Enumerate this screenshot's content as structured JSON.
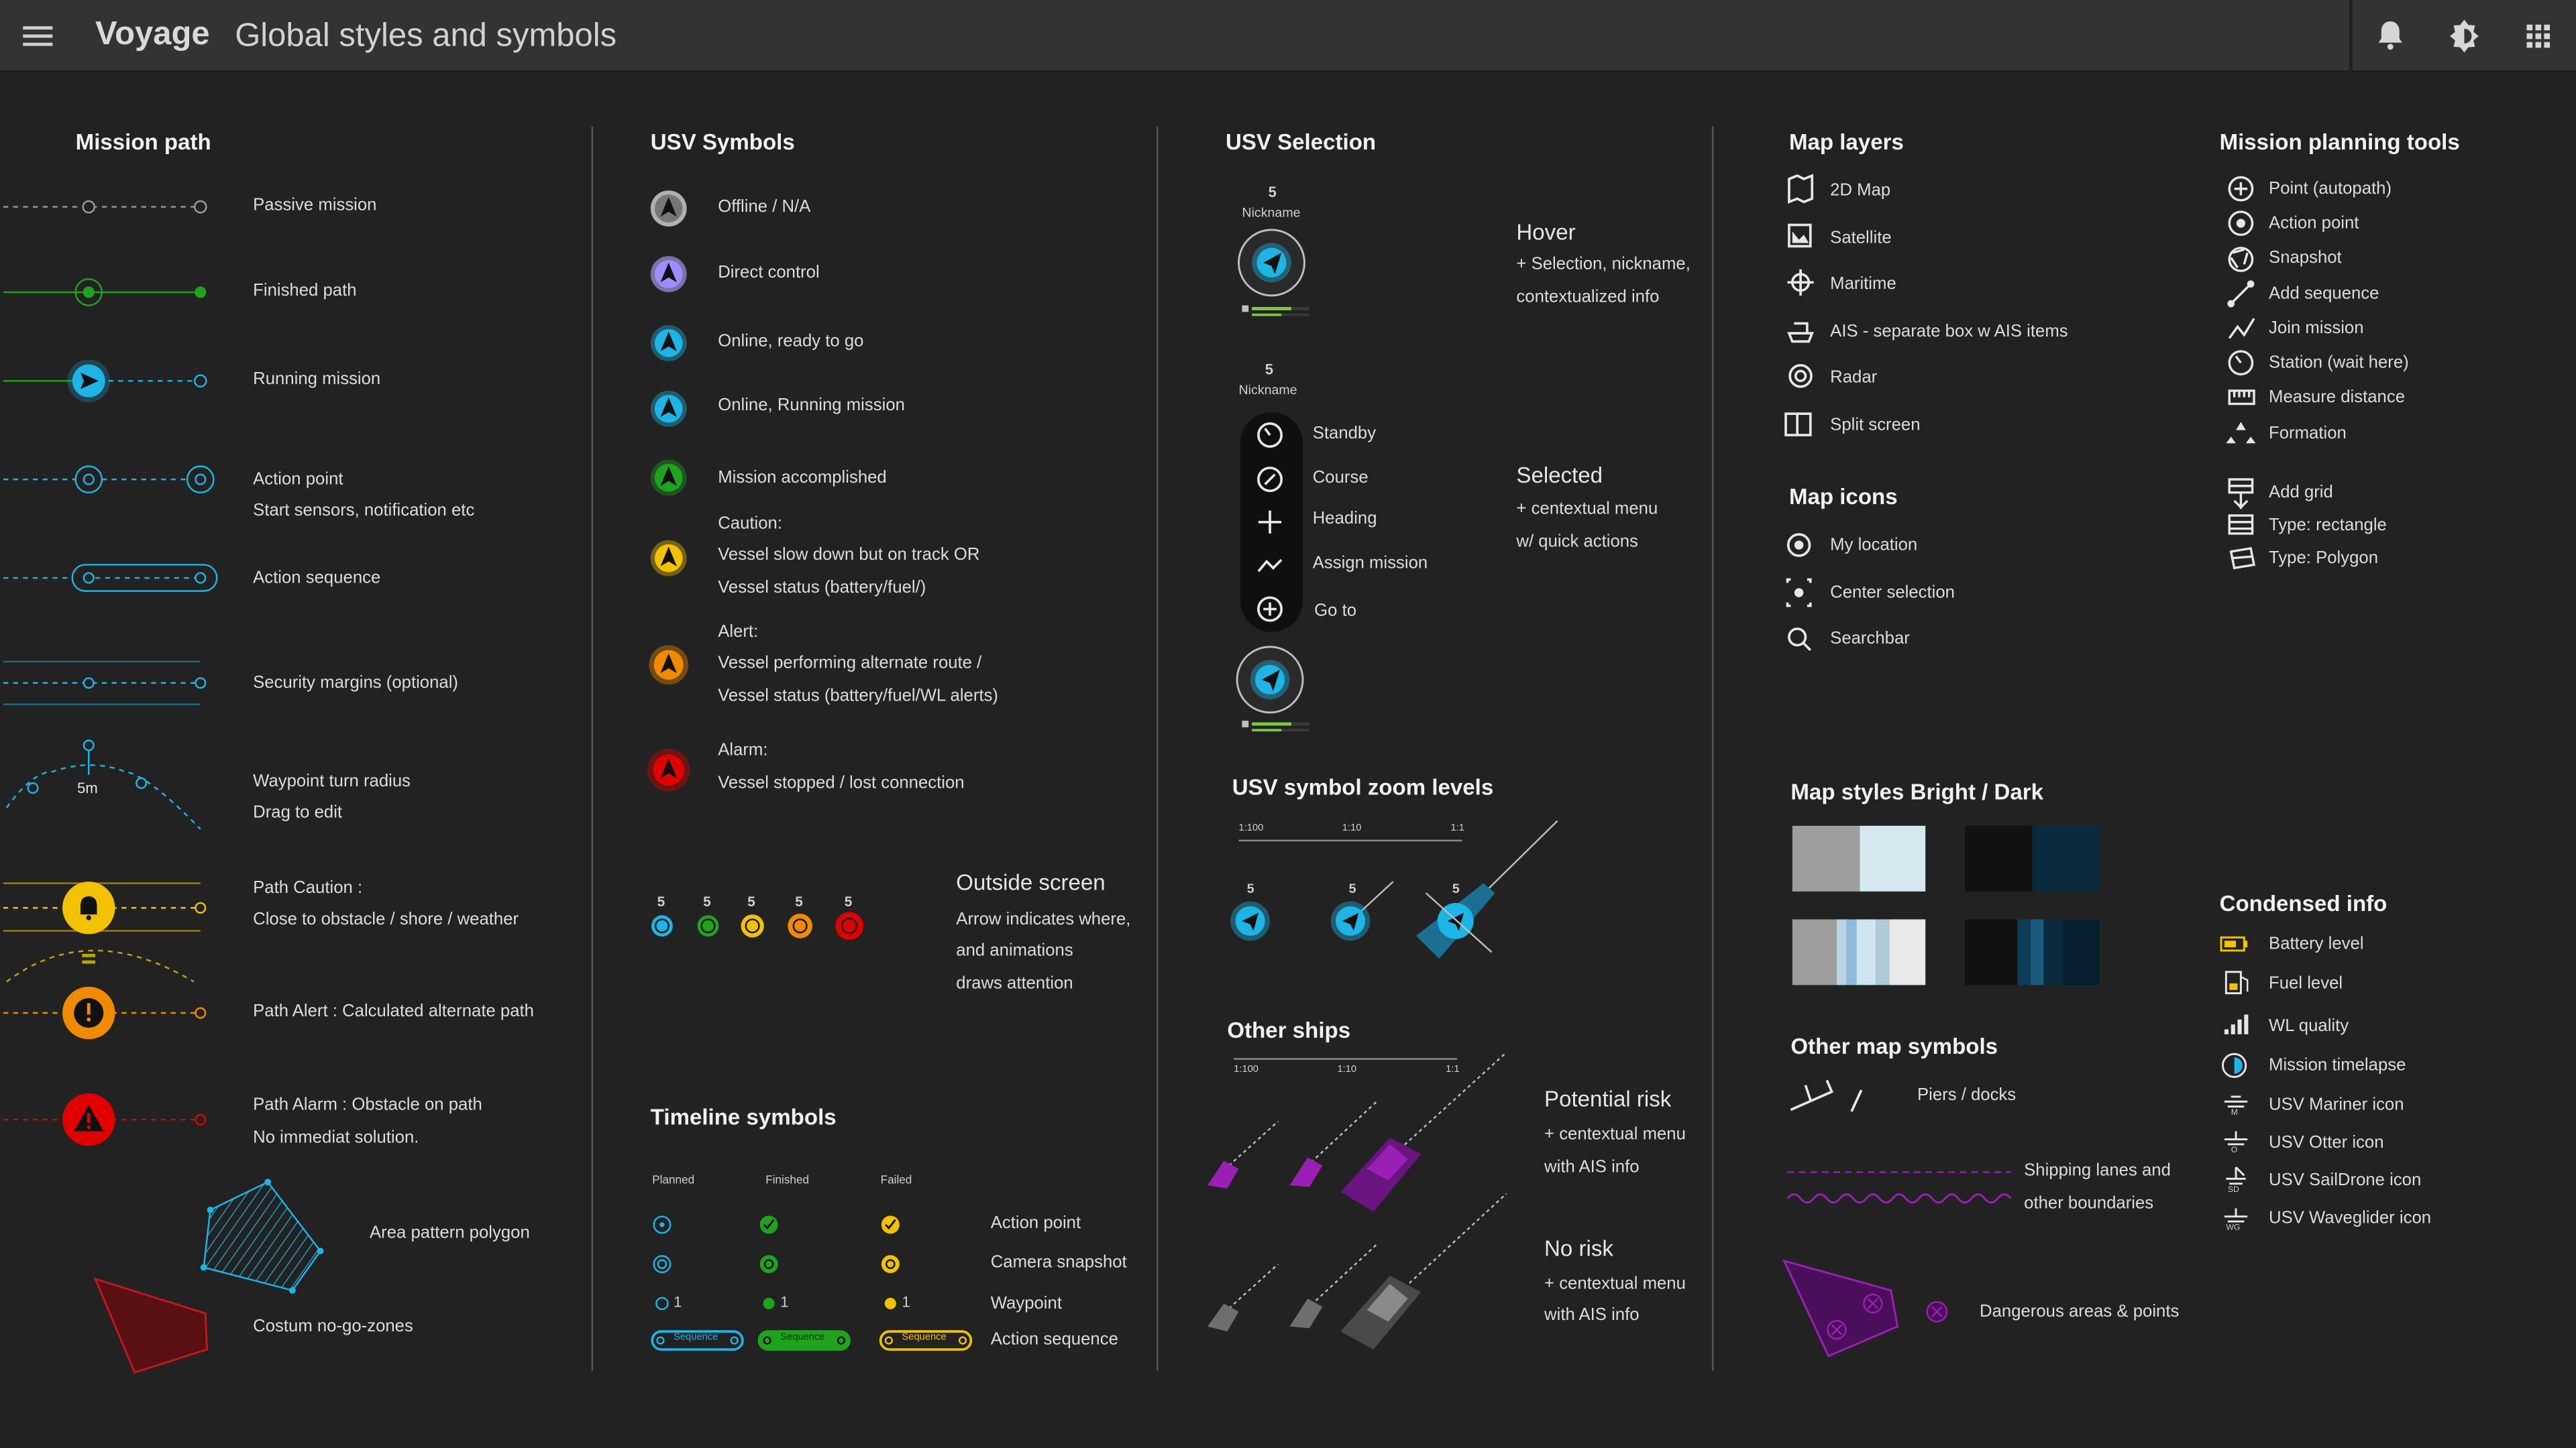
{
  "header": {
    "brand": "Voyage",
    "title": "Global styles and symbols"
  },
  "mission_path": {
    "title": "Mission path",
    "items": [
      {
        "label": "Passive mission"
      },
      {
        "label": "Finished path"
      },
      {
        "label": "Running mission"
      },
      {
        "label": "Action point",
        "sub": "Start sensors, notification etc"
      },
      {
        "label": "Action sequence"
      },
      {
        "label": "Security margins (optional)"
      },
      {
        "label": "Waypoint turn radius",
        "sub": "Drag to edit",
        "tag": "5m"
      },
      {
        "label": "Path Caution :",
        "sub": "Close to obstacle / shore / weather"
      },
      {
        "label": "Path Alert : Calculated alternate path"
      },
      {
        "label": "Path Alarm : Obstacle on path",
        "sub": "No immediat solution."
      },
      {
        "label": "Area pattern polygon"
      },
      {
        "label": "Costum no-go-zones"
      }
    ]
  },
  "usv_symbols": {
    "title": "USV Symbols",
    "items": [
      {
        "lines": [
          "Offline / N/A"
        ]
      },
      {
        "lines": [
          "Direct control"
        ]
      },
      {
        "lines": [
          "Online, ready to go"
        ]
      },
      {
        "lines": [
          "Online, Running mission"
        ]
      },
      {
        "lines": [
          "Mission accomplished"
        ]
      },
      {
        "lines": [
          "Caution:",
          "Vessel slow down but on track OR",
          "Vessel status (battery/fuel/)"
        ]
      },
      {
        "lines": [
          "Alert:",
          "Vessel performing alternate route /",
          "Vessel status (battery/fuel/WL alerts)"
        ]
      },
      {
        "lines": [
          "Alarm:",
          "Vessel stopped / lost connection"
        ]
      }
    ],
    "outside": {
      "title": "Outside screen",
      "lines": [
        "Arrow indicates where,",
        "and animations",
        "draws attention"
      ],
      "marker_num": "5"
    }
  },
  "timeline": {
    "title": "Timeline symbols",
    "cols": [
      "Planned",
      "Finished",
      "Failed"
    ],
    "rows": [
      "Action point",
      "Camera snapshot",
      "Waypoint",
      "Action sequence"
    ],
    "wp_num": "1",
    "seq_label": "Sequence"
  },
  "usv_selection": {
    "title": "USV Selection",
    "num": "5",
    "nickname": "Nickname",
    "hover": {
      "title": "Hover",
      "lines": [
        "+ Selection, nickname,",
        "contextualized info"
      ]
    },
    "selected": {
      "title": "Selected",
      "lines": [
        "+ centextual menu",
        "w/ quick actions"
      ]
    },
    "menu": [
      "Standby",
      "Course",
      "Heading",
      "Assign mission",
      "Go to"
    ]
  },
  "zoom": {
    "title": "USV symbol zoom levels",
    "scales": [
      "1:100",
      "1:10",
      "1:1"
    ],
    "num": "5"
  },
  "other_ships": {
    "title": "Other ships",
    "scales": [
      "1:100",
      "1:10",
      "1:1"
    ],
    "risk": {
      "title": "Potential risk",
      "lines": [
        "+ centextual menu",
        "with AIS info"
      ]
    },
    "norisk": {
      "title": "No risk",
      "lines": [
        "+ centextual menu",
        "with AIS info"
      ]
    }
  },
  "map_layers": {
    "title": "Map layers",
    "items": [
      "2D Map",
      "Satellite",
      "Maritime",
      "AIS - separate box w AIS items",
      "Radar",
      "Split screen"
    ]
  },
  "map_icons": {
    "title": "Map icons",
    "items": [
      "My location",
      "Center selection",
      "Searchbar"
    ]
  },
  "map_styles": {
    "title": "Map styles Bright / Dark"
  },
  "other_map": {
    "title": "Other map symbols",
    "items": [
      "Piers / docks",
      "Shipping lanes and",
      "other boundaries",
      "Dangerous areas & points"
    ]
  },
  "tools": {
    "title": "Mission planning tools",
    "items": [
      "Point (autopath)",
      "Action point",
      "Snapshot",
      "Add sequence",
      "Join mission",
      "Station (wait here)",
      "Measure distance",
      "Formation"
    ],
    "grid": [
      "Add grid",
      "Type: rectangle",
      "Type: Polygon"
    ]
  },
  "condensed": {
    "title": "Condensed info",
    "items": [
      "Battery level",
      "Fuel level",
      "WL quality",
      "Mission timelapse",
      "USV Mariner icon",
      "USV Otter icon",
      "USV SailDrone icon",
      "USV Waveglider icon"
    ],
    "tags": [
      "M",
      "O",
      "SD",
      "WG"
    ]
  },
  "colors": {
    "bg": "#222222",
    "cyan": "#1eb4e6",
    "green": "#1fa31f",
    "yellow": "#f2c200",
    "orange": "#f08a00",
    "red": "#e00000",
    "purple": "#8a22b0"
  }
}
